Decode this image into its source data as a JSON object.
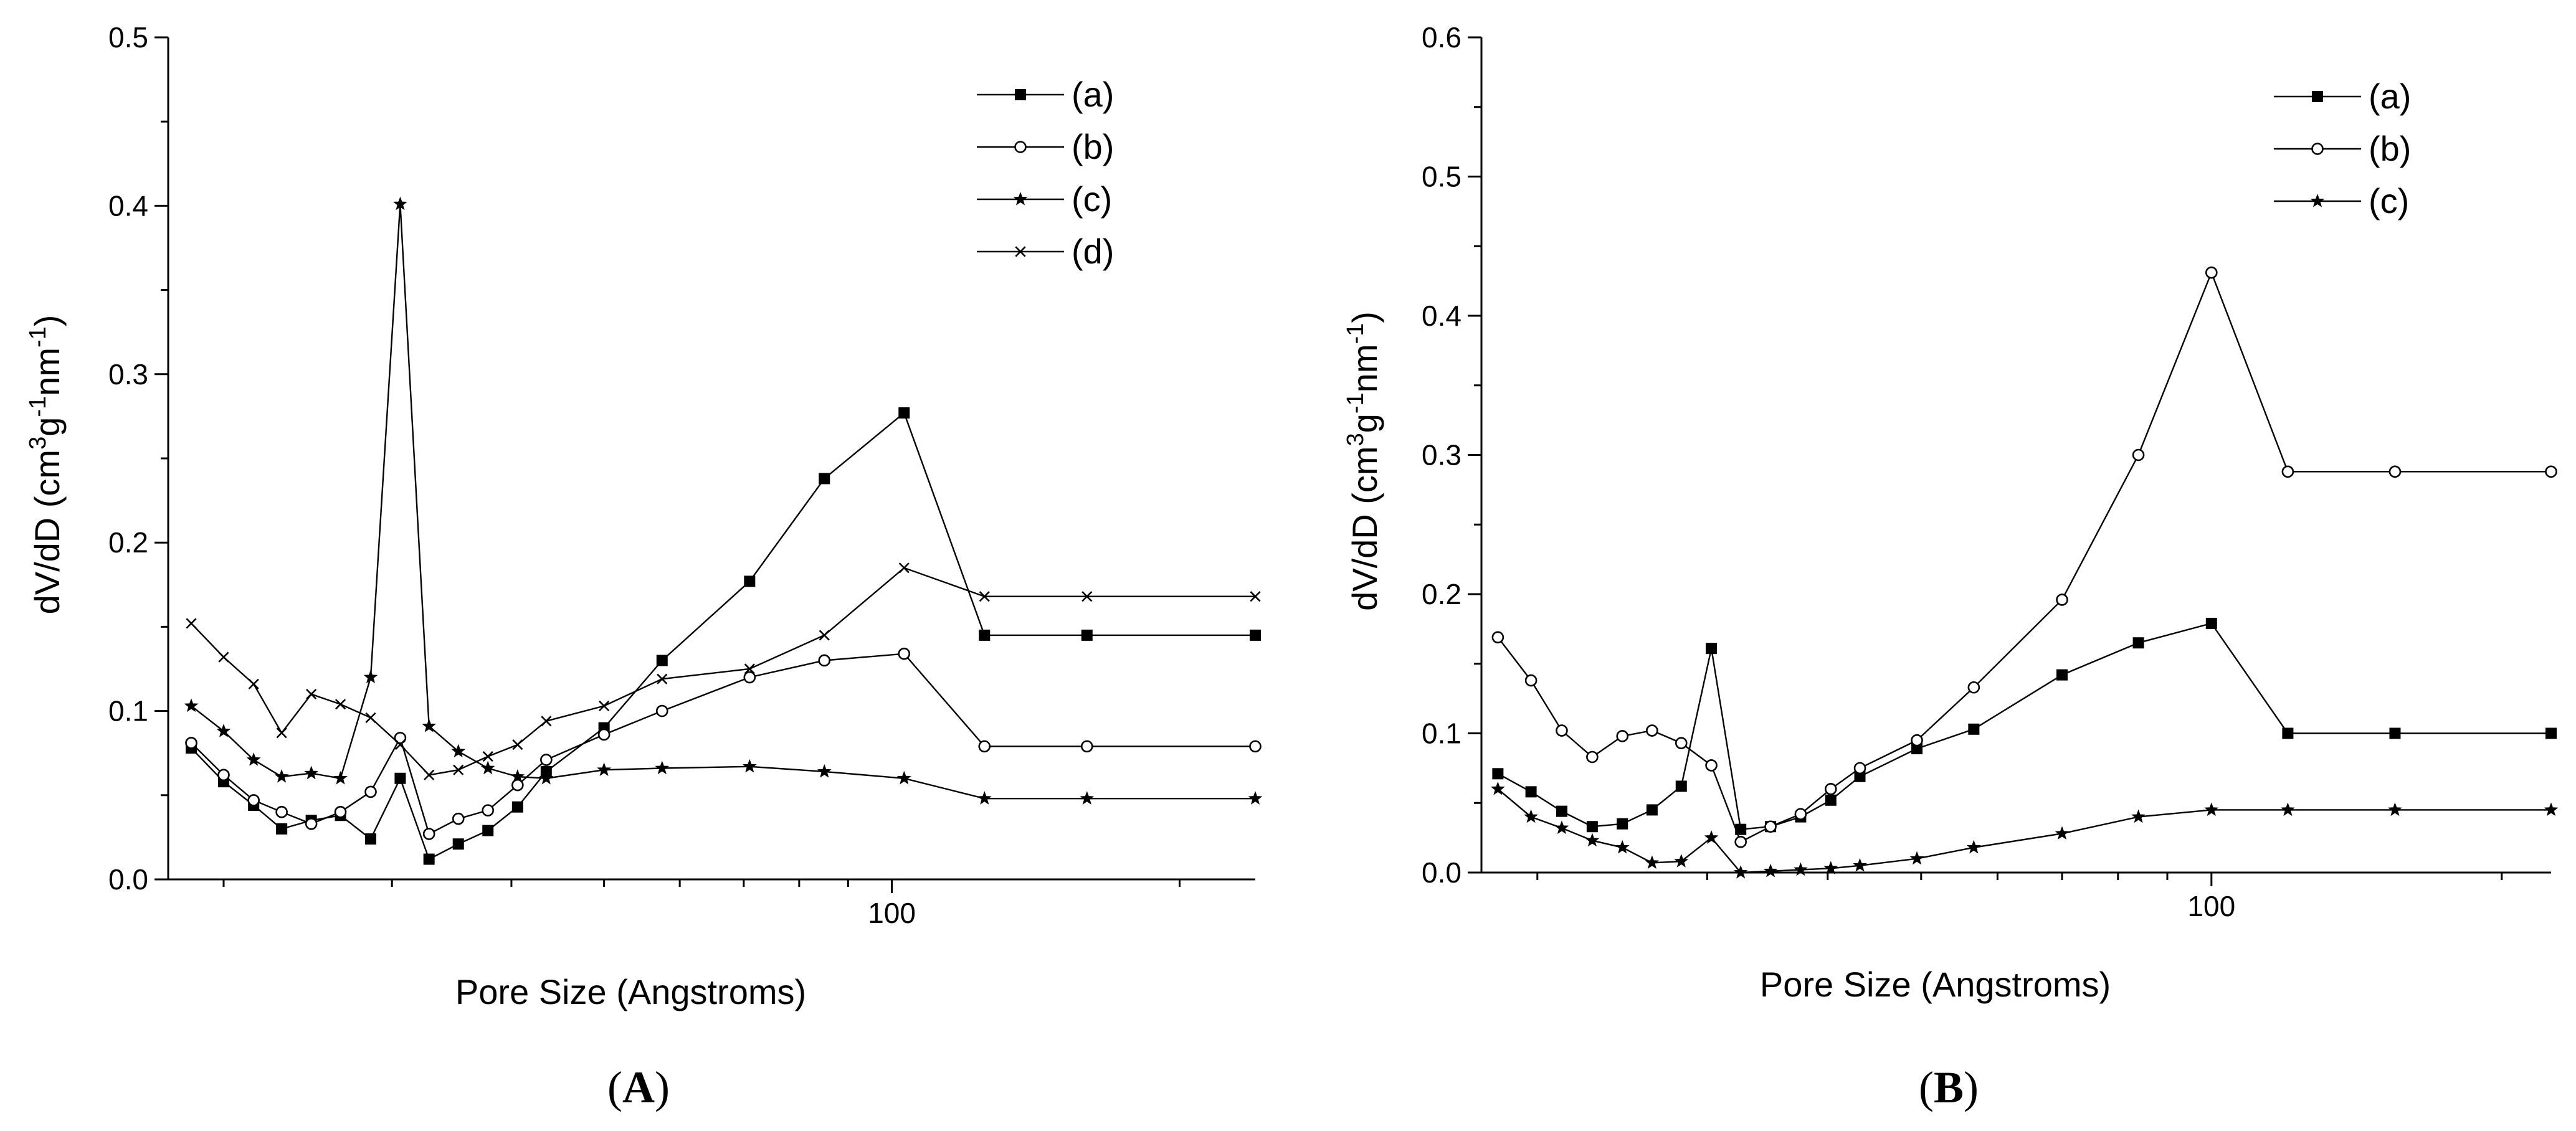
{
  "chart_data": [
    {
      "type": "line",
      "panel_label": "(A)",
      "xlabel": "Pore Size (Angstroms)",
      "ylabel": "dV/dD (cm3g-1nm-1)",
      "ylabel_parts": [
        "dV/dD (cm",
        "3",
        "g",
        "-1",
        "nm",
        "-1",
        ")"
      ],
      "xscale": "log",
      "xlim": [
        17.5,
        240
      ],
      "ylim": [
        0,
        0.5
      ],
      "yticks": [
        "0.0",
        "0.1",
        "0.2",
        "0.3",
        "0.4",
        "0.5"
      ],
      "xticks": [
        "100"
      ],
      "legend_position": "top-right",
      "series": [
        {
          "name": "(a)",
          "marker": "square",
          "x": [
            18.5,
            20,
            21.5,
            23,
            24.7,
            26.5,
            28.5,
            30.6,
            32.8,
            35.2,
            37.8,
            40.6,
            43.5,
            50,
            57.5,
            71,
            85,
            103,
            125,
            160,
            240
          ],
          "y": [
            0.078,
            0.058,
            0.044,
            0.03,
            0.035,
            0.038,
            0.024,
            0.06,
            0.012,
            0.021,
            0.029,
            0.043,
            0.064,
            0.09,
            0.13,
            0.177,
            0.238,
            0.277,
            0.145,
            0.145,
            0.145
          ]
        },
        {
          "name": "(b)",
          "marker": "circle",
          "x": [
            18.5,
            20,
            21.5,
            23,
            24.7,
            26.5,
            28.5,
            30.6,
            32.8,
            35.2,
            37.8,
            40.6,
            43.5,
            50,
            57.5,
            71,
            85,
            103,
            125,
            160,
            240
          ],
          "y": [
            0.081,
            0.062,
            0.047,
            0.04,
            0.033,
            0.04,
            0.052,
            0.084,
            0.027,
            0.036,
            0.041,
            0.056,
            0.071,
            0.086,
            0.1,
            0.12,
            0.13,
            0.134,
            0.079,
            0.079,
            0.079
          ]
        },
        {
          "name": "(c)",
          "marker": "star",
          "x": [
            18.5,
            20,
            21.5,
            23,
            24.7,
            26.5,
            28.5,
            30.6,
            32.8,
            35.2,
            37.8,
            40.6,
            43.5,
            50,
            57.5,
            71,
            85,
            103,
            125,
            160,
            240
          ],
          "y": [
            0.103,
            0.088,
            0.071,
            0.061,
            0.063,
            0.06,
            0.12,
            0.401,
            0.091,
            0.076,
            0.066,
            0.061,
            0.06,
            0.065,
            0.066,
            0.067,
            0.064,
            0.06,
            0.048,
            0.048,
            0.048
          ]
        },
        {
          "name": "(d)",
          "marker": "cross",
          "x": [
            18.5,
            20,
            21.5,
            23,
            24.7,
            26.5,
            28.5,
            30.6,
            32.8,
            35.2,
            37.8,
            40.6,
            43.5,
            50,
            57.5,
            71,
            85,
            103,
            125,
            160,
            240
          ],
          "y": [
            0.152,
            0.132,
            0.116,
            0.087,
            0.11,
            0.104,
            0.096,
            0.08,
            0.062,
            0.065,
            0.073,
            0.08,
            0.094,
            0.103,
            0.119,
            0.125,
            0.145,
            0.185,
            0.168,
            0.168,
            0.168
          ]
        }
      ]
    },
    {
      "type": "line",
      "panel_label": "(B)",
      "xlabel": "Pore Size (Angstroms)",
      "ylabel": "dV/dD (cm3g-1nm-1)",
      "ylabel_parts": [
        "dV/dD (cm",
        "3",
        "g",
        "-1",
        "nm",
        "-1",
        ")"
      ],
      "xscale": "log",
      "xlim": [
        17.5,
        225
      ],
      "ylim": [
        0,
        0.6
      ],
      "yticks": [
        "0.0",
        "0.1",
        "0.2",
        "0.3",
        "0.4",
        "0.5",
        "0.6"
      ],
      "xticks": [
        "100"
      ],
      "legend_position": "top-right",
      "series": [
        {
          "name": "(a)",
          "marker": "square",
          "x": [
            18.2,
            19.7,
            21.2,
            22.8,
            24.5,
            26.3,
            28.2,
            30.3,
            32.5,
            34.9,
            37.5,
            40.3,
            43.2,
            49.5,
            56.7,
            70,
            84,
            100,
            120,
            155,
            225
          ],
          "y": [
            0.071,
            0.058,
            0.044,
            0.033,
            0.035,
            0.045,
            0.062,
            0.161,
            0.031,
            0.033,
            0.04,
            0.052,
            0.069,
            0.089,
            0.103,
            0.142,
            0.165,
            0.179,
            0.1,
            0.1,
            0.1
          ]
        },
        {
          "name": "(b)",
          "marker": "circle",
          "x": [
            18.2,
            19.7,
            21.2,
            22.8,
            24.5,
            26.3,
            28.2,
            30.3,
            32.5,
            34.9,
            37.5,
            40.3,
            43.2,
            49.5,
            56.7,
            70,
            84,
            100,
            120,
            155,
            225
          ],
          "y": [
            0.169,
            0.138,
            0.102,
            0.083,
            0.098,
            0.102,
            0.093,
            0.077,
            0.022,
            0.033,
            0.042,
            0.06,
            0.075,
            0.095,
            0.133,
            0.196,
            0.3,
            0.431,
            0.288,
            0.288,
            0.288
          ]
        },
        {
          "name": "(c)",
          "marker": "star",
          "x": [
            18.2,
            19.7,
            21.2,
            22.8,
            24.5,
            26.3,
            28.2,
            30.3,
            32.5,
            34.9,
            37.5,
            40.3,
            43.2,
            49.5,
            56.7,
            70,
            84,
            100,
            120,
            155,
            225
          ],
          "y": [
            0.06,
            0.04,
            0.032,
            0.023,
            0.018,
            0.007,
            0.008,
            0.025,
            0.0,
            0.001,
            0.002,
            0.003,
            0.005,
            0.01,
            0.018,
            0.028,
            0.04,
            0.045,
            0.045,
            0.045,
            0.045
          ]
        }
      ]
    }
  ]
}
